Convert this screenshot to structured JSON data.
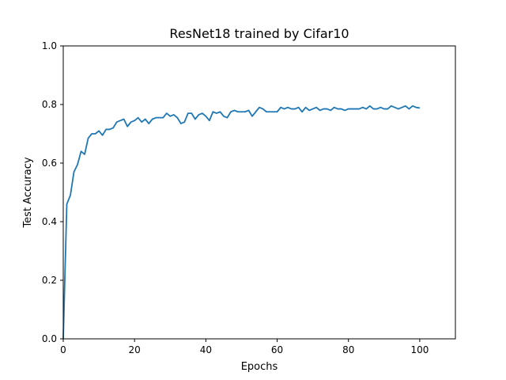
{
  "chart_data": {
    "type": "line",
    "title": "ResNet18 trained by Cifar10",
    "xlabel": "Epochs",
    "ylabel": "Test Accuracy",
    "xlim": [
      0,
      110
    ],
    "ylim": [
      0,
      1.0
    ],
    "grid": false,
    "x_ticks": [
      0,
      20,
      40,
      60,
      80,
      100
    ],
    "x_tick_labels": [
      "0",
      "20",
      "40",
      "60",
      "80",
      "100"
    ],
    "y_ticks": [
      0,
      0.2,
      0.4,
      0.6,
      0.8,
      1.0
    ],
    "y_tick_labels": [
      "0.0",
      "0.2",
      "0.4",
      "0.6",
      "0.8",
      "1.0"
    ],
    "series": [
      {
        "color": "#1f77b4",
        "x": [
          0,
          1,
          2,
          3,
          4,
          5,
          6,
          7,
          8,
          9,
          10,
          11,
          12,
          13,
          14,
          15,
          16,
          17,
          18,
          19,
          20,
          21,
          22,
          23,
          24,
          25,
          26,
          27,
          28,
          29,
          30,
          31,
          32,
          33,
          34,
          35,
          36,
          37,
          38,
          39,
          40,
          41,
          42,
          43,
          44,
          45,
          46,
          47,
          48,
          49,
          50,
          51,
          52,
          53,
          54,
          55,
          56,
          57,
          58,
          59,
          60,
          61,
          62,
          63,
          64,
          65,
          66,
          67,
          68,
          69,
          70,
          71,
          72,
          73,
          74,
          75,
          76,
          77,
          78,
          79,
          80,
          81,
          82,
          83,
          84,
          85,
          86,
          87,
          88,
          89,
          90,
          91,
          92,
          93,
          94,
          95,
          96,
          97,
          98,
          99,
          100
        ],
        "y": [
          0.0,
          0.46,
          0.49,
          0.57,
          0.595,
          0.64,
          0.63,
          0.685,
          0.7,
          0.7,
          0.71,
          0.695,
          0.715,
          0.715,
          0.72,
          0.74,
          0.745,
          0.75,
          0.725,
          0.74,
          0.745,
          0.755,
          0.74,
          0.75,
          0.735,
          0.75,
          0.755,
          0.755,
          0.755,
          0.77,
          0.76,
          0.765,
          0.755,
          0.735,
          0.74,
          0.77,
          0.77,
          0.75,
          0.765,
          0.77,
          0.76,
          0.745,
          0.775,
          0.77,
          0.775,
          0.76,
          0.755,
          0.775,
          0.78,
          0.775,
          0.775,
          0.775,
          0.78,
          0.76,
          0.775,
          0.79,
          0.785,
          0.775,
          0.775,
          0.775,
          0.775,
          0.79,
          0.785,
          0.79,
          0.785,
          0.785,
          0.79,
          0.775,
          0.79,
          0.78,
          0.785,
          0.79,
          0.78,
          0.785,
          0.785,
          0.78,
          0.79,
          0.785,
          0.785,
          0.78,
          0.785,
          0.785,
          0.785,
          0.785,
          0.79,
          0.785,
          0.795,
          0.785,
          0.785,
          0.79,
          0.785,
          0.785,
          0.795,
          0.79,
          0.785,
          0.79,
          0.795,
          0.785,
          0.795,
          0.79,
          0.788
        ]
      }
    ]
  }
}
